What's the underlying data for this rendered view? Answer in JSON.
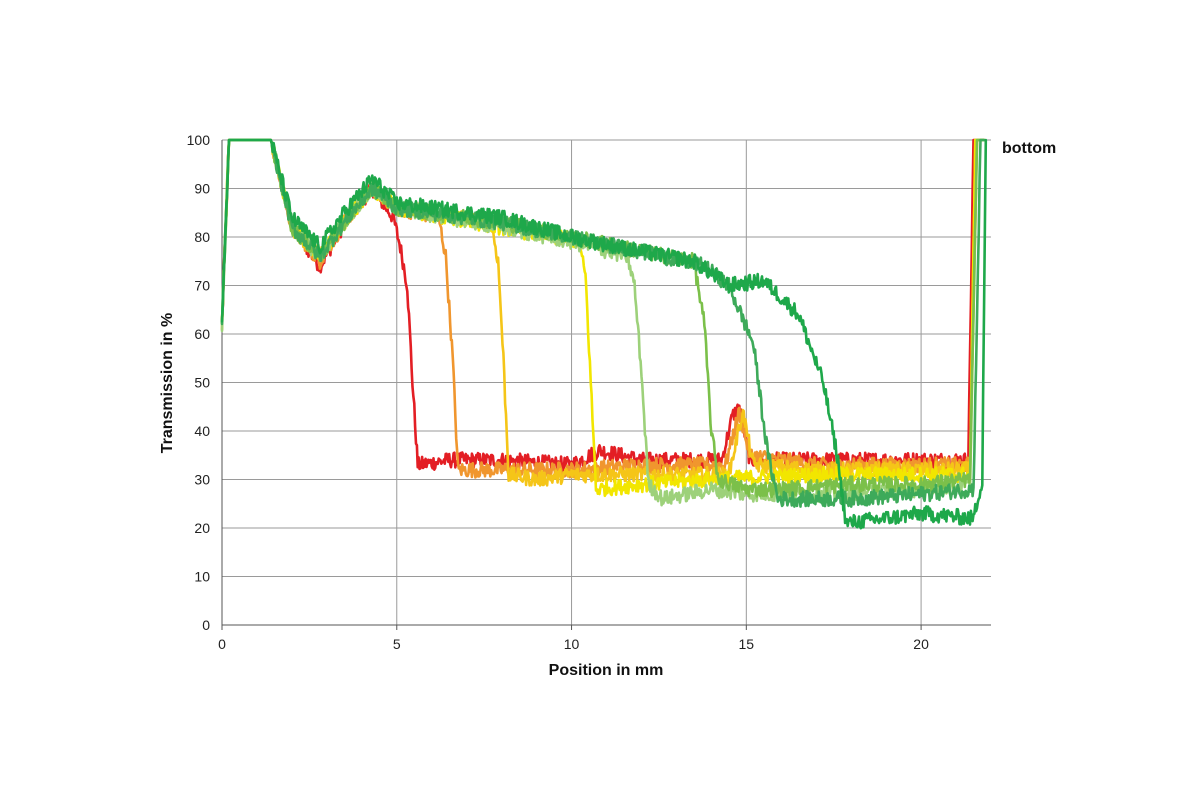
{
  "chart_data": {
    "type": "line",
    "title": "",
    "xlabel": "Position in mm",
    "ylabel": "Transmission in %",
    "xlim": [
      0,
      22
    ],
    "ylim": [
      0,
      100
    ],
    "xticks": [
      0,
      5,
      10,
      15,
      20
    ],
    "yticks": [
      0,
      10,
      20,
      30,
      40,
      50,
      60,
      70,
      80,
      90,
      100
    ],
    "grid": true,
    "annotation": "bottom",
    "series": [
      {
        "color": "#e31e24",
        "values": [
          [
            0,
            62
          ],
          [
            0.2,
            100
          ],
          [
            1.4,
            100
          ],
          [
            2.0,
            82
          ],
          [
            2.8,
            74
          ],
          [
            3.6,
            84
          ],
          [
            4.3,
            90
          ],
          [
            4.9,
            84
          ],
          [
            5.1,
            78
          ],
          [
            5.3,
            70
          ],
          [
            5.45,
            50
          ],
          [
            5.6,
            33
          ],
          [
            6.5,
            34
          ],
          [
            8,
            34
          ],
          [
            10,
            33
          ],
          [
            10.8,
            36
          ],
          [
            12,
            34
          ],
          [
            14.3,
            34
          ],
          [
            14.6,
            43
          ],
          [
            14.8,
            45
          ],
          [
            15.1,
            34
          ],
          [
            17,
            34
          ],
          [
            20,
            34
          ],
          [
            21.35,
            34
          ],
          [
            21.5,
            100
          ],
          [
            21.8,
            100
          ]
        ]
      },
      {
        "color": "#f0962e",
        "values": [
          [
            0,
            62
          ],
          [
            0.2,
            100
          ],
          [
            1.4,
            100
          ],
          [
            2.0,
            82
          ],
          [
            2.8,
            75
          ],
          [
            3.6,
            84
          ],
          [
            4.3,
            90
          ],
          [
            5,
            86
          ],
          [
            6.2,
            84
          ],
          [
            6.4,
            76
          ],
          [
            6.6,
            55
          ],
          [
            6.75,
            32
          ],
          [
            8,
            32
          ],
          [
            10,
            32
          ],
          [
            12,
            33
          ],
          [
            14.4,
            33
          ],
          [
            14.8,
            44
          ],
          [
            15.1,
            35
          ],
          [
            17,
            33
          ],
          [
            20,
            33
          ],
          [
            21.4,
            33
          ],
          [
            21.6,
            100
          ],
          [
            21.8,
            100
          ]
        ]
      },
      {
        "color": "#f5c518",
        "values": [
          [
            0,
            62
          ],
          [
            0.2,
            100
          ],
          [
            1.4,
            100
          ],
          [
            2.0,
            82
          ],
          [
            2.8,
            76
          ],
          [
            3.6,
            84
          ],
          [
            4.3,
            90
          ],
          [
            5,
            86
          ],
          [
            7.7,
            83
          ],
          [
            7.9,
            75
          ],
          [
            8.05,
            55
          ],
          [
            8.2,
            31
          ],
          [
            9,
            30
          ],
          [
            10,
            31
          ],
          [
            12,
            31
          ],
          [
            14.5,
            31
          ],
          [
            14.9,
            44
          ],
          [
            15.2,
            33
          ],
          [
            17,
            32
          ],
          [
            20,
            32
          ],
          [
            21.4,
            32
          ],
          [
            21.55,
            100
          ],
          [
            21.8,
            100
          ]
        ]
      },
      {
        "color": "#f2e600",
        "values": [
          [
            0,
            62
          ],
          [
            0.2,
            100
          ],
          [
            1.4,
            100
          ],
          [
            2.0,
            82
          ],
          [
            2.8,
            76
          ],
          [
            3.6,
            84
          ],
          [
            4.3,
            90
          ],
          [
            5,
            86
          ],
          [
            8,
            82
          ],
          [
            10.2,
            79
          ],
          [
            10.4,
            72
          ],
          [
            10.55,
            50
          ],
          [
            10.7,
            28
          ],
          [
            12,
            29
          ],
          [
            14,
            30
          ],
          [
            17,
            31
          ],
          [
            20,
            31
          ],
          [
            21.4,
            31
          ],
          [
            21.55,
            100
          ],
          [
            21.8,
            100
          ]
        ]
      },
      {
        "color": "#9dd17a",
        "values": [
          [
            0,
            62
          ],
          [
            0.2,
            100
          ],
          [
            1.4,
            100
          ],
          [
            2.0,
            82
          ],
          [
            2.8,
            76
          ],
          [
            3.6,
            84
          ],
          [
            4.3,
            90
          ],
          [
            5,
            86
          ],
          [
            8,
            82
          ],
          [
            10,
            79
          ],
          [
            11.6,
            76
          ],
          [
            11.8,
            70
          ],
          [
            12.0,
            52
          ],
          [
            12.2,
            29
          ],
          [
            12.6,
            26
          ],
          [
            14,
            28
          ],
          [
            15,
            27
          ],
          [
            17,
            27
          ],
          [
            20,
            28
          ],
          [
            21.4,
            29
          ],
          [
            21.6,
            100
          ],
          [
            21.8,
            100
          ]
        ]
      },
      {
        "color": "#7bc04a",
        "values": [
          [
            0,
            62
          ],
          [
            0.2,
            100
          ],
          [
            1.4,
            100
          ],
          [
            2.0,
            82
          ],
          [
            2.8,
            76
          ],
          [
            3.6,
            84
          ],
          [
            4.3,
            90
          ],
          [
            5,
            86
          ],
          [
            8,
            83
          ],
          [
            10,
            80
          ],
          [
            12,
            77
          ],
          [
            13.5,
            75
          ],
          [
            13.8,
            62
          ],
          [
            14.0,
            40
          ],
          [
            14.2,
            30
          ],
          [
            15,
            28
          ],
          [
            16,
            28
          ],
          [
            18,
            29
          ],
          [
            20,
            29
          ],
          [
            21.4,
            30
          ],
          [
            21.6,
            100
          ],
          [
            21.8,
            100
          ]
        ]
      },
      {
        "color": "#3daa5a",
        "values": [
          [
            0,
            62
          ],
          [
            0.2,
            100
          ],
          [
            1.4,
            100
          ],
          [
            2.0,
            82
          ],
          [
            2.8,
            76
          ],
          [
            3.6,
            84
          ],
          [
            4.3,
            90
          ],
          [
            5,
            86
          ],
          [
            8,
            83
          ],
          [
            10,
            80
          ],
          [
            12,
            77
          ],
          [
            13.8,
            74
          ],
          [
            14.5,
            70
          ],
          [
            15.2,
            58
          ],
          [
            15.6,
            36
          ],
          [
            15.9,
            26
          ],
          [
            17,
            26
          ],
          [
            18,
            26
          ],
          [
            20,
            27
          ],
          [
            21.5,
            28
          ],
          [
            21.7,
            100
          ],
          [
            21.8,
            100
          ]
        ]
      },
      {
        "color": "#1ea84a",
        "values": [
          [
            0,
            62
          ],
          [
            0.2,
            100
          ],
          [
            1.4,
            100
          ],
          [
            2.0,
            84
          ],
          [
            2.8,
            78
          ],
          [
            3.6,
            86
          ],
          [
            4.3,
            92
          ],
          [
            5,
            87
          ],
          [
            8,
            84
          ],
          [
            10,
            80
          ],
          [
            12,
            77
          ],
          [
            13.5,
            75
          ],
          [
            14.5,
            70
          ],
          [
            15.5,
            71
          ],
          [
            16.5,
            64
          ],
          [
            17.2,
            50
          ],
          [
            17.6,
            35
          ],
          [
            17.85,
            21
          ],
          [
            19,
            22
          ],
          [
            20,
            23
          ],
          [
            21.5,
            22
          ],
          [
            21.75,
            30
          ],
          [
            21.85,
            100
          ]
        ]
      }
    ]
  }
}
